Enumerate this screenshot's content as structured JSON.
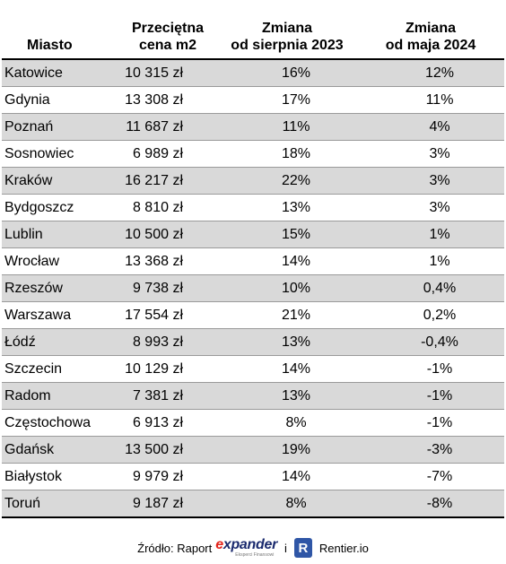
{
  "chart_data": {
    "type": "table",
    "columns": [
      [
        "Miasto"
      ],
      [
        "Przeciętna",
        "cena m2"
      ],
      [
        "Zmiana",
        "od sierpnia 2023"
      ],
      [
        "Zmiana",
        "od maja 2024"
      ]
    ],
    "rows": [
      [
        "Katowice",
        "10 315 zł",
        "16%",
        "12%"
      ],
      [
        "Gdynia",
        "13 308 zł",
        "17%",
        "11%"
      ],
      [
        "Poznań",
        "11 687 zł",
        "11%",
        "4%"
      ],
      [
        "Sosnowiec",
        "6 989 zł",
        "18%",
        "3%"
      ],
      [
        "Kraków",
        "16 217 zł",
        "22%",
        "3%"
      ],
      [
        "Bydgoszcz",
        "8 810 zł",
        "13%",
        "3%"
      ],
      [
        "Lublin",
        "10 500 zł",
        "15%",
        "1%"
      ],
      [
        "Wrocław",
        "13 368 zł",
        "14%",
        "1%"
      ],
      [
        "Rzeszów",
        "9 738 zł",
        "10%",
        "0,4%"
      ],
      [
        "Warszawa",
        "17 554 zł",
        "21%",
        "0,2%"
      ],
      [
        "Łódź",
        "8 993 zł",
        "13%",
        "-0,4%"
      ],
      [
        "Szczecin",
        "10 129 zł",
        "14%",
        "-1%"
      ],
      [
        "Radom",
        "7 381 zł",
        "13%",
        "-1%"
      ],
      [
        "Częstochowa",
        "6 913 zł",
        "8%",
        "-1%"
      ],
      [
        "Gdańsk",
        "13 500 zł",
        "19%",
        "-3%"
      ],
      [
        "Białystok",
        "9 979 zł",
        "14%",
        "-7%"
      ],
      [
        "Toruń",
        "9 187 zł",
        "8%",
        "-8%"
      ]
    ]
  },
  "footer": {
    "source_label": "Źródło: Raport",
    "logo_brand": [
      "e",
      "xpander"
    ],
    "logo_tagline": "Eksperci Finansowi",
    "separator": "i",
    "badge_letter": "R",
    "partner": "Rentier.io"
  },
  "colors": {
    "stripe": "#d9d9d9",
    "logo_accent": "#e2231a",
    "logo_text": "#1a2a6e",
    "badge": "#2f56a6"
  }
}
